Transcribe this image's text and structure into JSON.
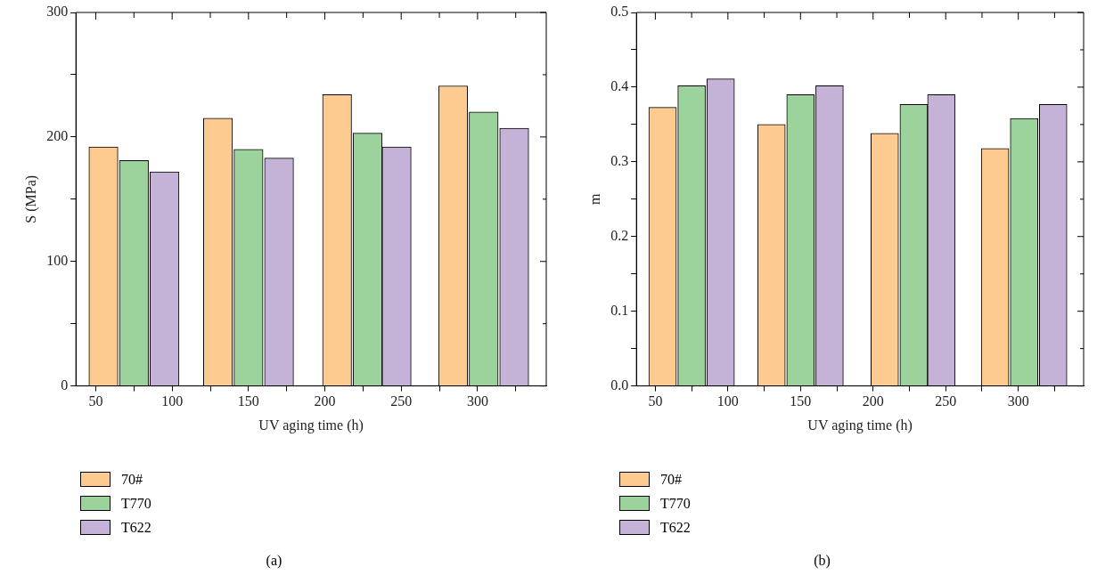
{
  "chart_data": [
    {
      "type": "bar",
      "xlabel": "UV aging time (h)",
      "ylabel": "S (MPa)",
      "annotations": [
        "(a)"
      ],
      "legend": "bottom left",
      "grid": false,
      "xlim": [
        37,
        345
      ],
      "xticks": [
        50,
        {
          "value": 75,
          "label": null
        },
        100,
        {
          "value": 125,
          "label": null
        },
        150,
        {
          "value": 175,
          "label": null
        },
        200,
        {
          "value": 225,
          "label": null
        },
        250,
        {
          "value": 275,
          "label": null
        },
        300,
        {
          "value": 325,
          "label": null
        }
      ],
      "ylim": [
        0,
        300
      ],
      "yticks": [
        0,
        {
          "value": 50,
          "label": null
        },
        100,
        {
          "value": 150,
          "label": null
        },
        200,
        {
          "value": 250,
          "label": null
        },
        300
      ],
      "series": [
        {
          "name": "70#",
          "color": "#fdcb8f",
          "x": [
            55,
            130,
            208,
            284
          ],
          "values": [
            192,
            215,
            234,
            241
          ]
        },
        {
          "name": "T770",
          "color": "#9cd29b",
          "x": [
            75,
            150,
            228,
            304
          ],
          "values": [
            181,
            190,
            203,
            220
          ]
        },
        {
          "name": "T622",
          "color": "#c4b3d6",
          "x": [
            95,
            170,
            247,
            324
          ],
          "values": [
            172,
            183,
            192,
            207
          ]
        }
      ]
    },
    {
      "type": "bar",
      "xlabel": "UV aging time (h)",
      "ylabel": "m",
      "annotations": [
        "(b)"
      ],
      "legend": "bottom left",
      "grid": false,
      "xlim": [
        37,
        345
      ],
      "xticks": [
        50,
        {
          "value": 75,
          "label": null
        },
        100,
        {
          "value": 125,
          "label": null
        },
        150,
        {
          "value": 175,
          "label": null
        },
        200,
        {
          "value": 225,
          "label": null
        },
        250,
        {
          "value": 275,
          "label": null
        },
        300,
        {
          "value": 325,
          "label": null
        }
      ],
      "ylim": [
        0,
        0.5
      ],
      "yticks": [
        {
          "value": 0,
          "label": "0.0"
        },
        {
          "value": 0.05,
          "label": null
        },
        0.1,
        {
          "value": 0.15,
          "label": null
        },
        0.2,
        {
          "value": 0.25,
          "label": null
        },
        0.3,
        {
          "value": 0.35,
          "label": null
        },
        0.4,
        {
          "value": 0.45,
          "label": null
        },
        0.5
      ],
      "series": [
        {
          "name": "70#",
          "color": "#fdcb8f",
          "x": [
            55,
            130,
            208,
            284
          ],
          "values": [
            0.373,
            0.35,
            0.338,
            0.318
          ]
        },
        {
          "name": "T770",
          "color": "#9cd29b",
          "x": [
            75,
            150,
            228,
            304
          ],
          "values": [
            0.402,
            0.39,
            0.377,
            0.358
          ]
        },
        {
          "name": "T622",
          "color": "#c4b3d6",
          "x": [
            95,
            170,
            247,
            324
          ],
          "values": [
            0.411,
            0.402,
            0.39,
            0.377
          ]
        }
      ]
    }
  ]
}
